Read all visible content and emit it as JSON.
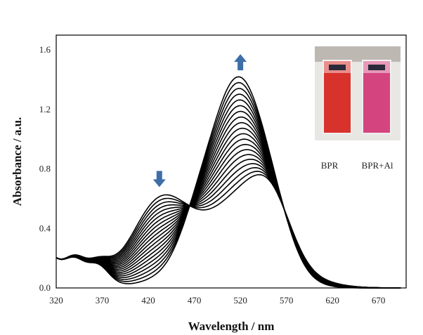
{
  "chart_data": {
    "type": "line",
    "xlabel": "Wavelength / nm",
    "ylabel": "Absorbance / a.u.",
    "xlim": [
      320,
      700
    ],
    "ylim": [
      0.0,
      1.7
    ],
    "x_ticks": [
      320,
      370,
      420,
      470,
      520,
      570,
      620,
      670
    ],
    "y_ticks": [
      0.0,
      0.4,
      0.8,
      1.2,
      1.6
    ],
    "x_tick_labels": [
      "320",
      "370",
      "420",
      "470",
      "520",
      "570",
      "620",
      "670"
    ],
    "y_tick_labels": [
      "0.0",
      "0.4",
      "0.8",
      "1.2",
      "1.6"
    ],
    "grid": false,
    "series_count": 20,
    "series_start": {
      "peaks": [
        {
          "center": 520,
          "width": 32,
          "height": 0.56
        },
        {
          "center": 555,
          "width": 22,
          "height": 0.36
        },
        {
          "center": 432,
          "width": 30,
          "height": 0.56
        },
        {
          "center": 340,
          "width": 10,
          "height": 0.1
        },
        {
          "center": 365,
          "width": 14,
          "height": 0.12
        },
        {
          "center": 590,
          "width": 30,
          "height": 0.05
        },
        {
          "center": 470,
          "width": 25,
          "height": 0.12
        }
      ],
      "offset": 0.19,
      "offset_decay": 28
    },
    "series_end": {
      "peaks": [
        {
          "center": 518,
          "width": 33,
          "height": 1.41
        },
        {
          "center": 560,
          "width": 18,
          "height": 0.08
        },
        {
          "center": 440,
          "width": 25,
          "height": 0.05
        },
        {
          "center": 340,
          "width": 10,
          "height": 0.1
        },
        {
          "center": 365,
          "width": 12,
          "height": 0.12
        },
        {
          "center": 470,
          "width": 18,
          "height": 0.14
        }
      ],
      "offset": 0.19,
      "offset_decay": 28
    },
    "annotations": [
      {
        "type": "arrow",
        "direction": "down",
        "x": 432,
        "y": 0.73,
        "color": "#3d6ea8"
      },
      {
        "type": "arrow",
        "direction": "up",
        "x": 520,
        "y": 1.52,
        "color": "#3d6ea8"
      }
    ],
    "inset": {
      "labels": [
        "BPR",
        "BPR+Al"
      ],
      "colors": [
        "#d8322c",
        "#d4457f"
      ]
    }
  }
}
